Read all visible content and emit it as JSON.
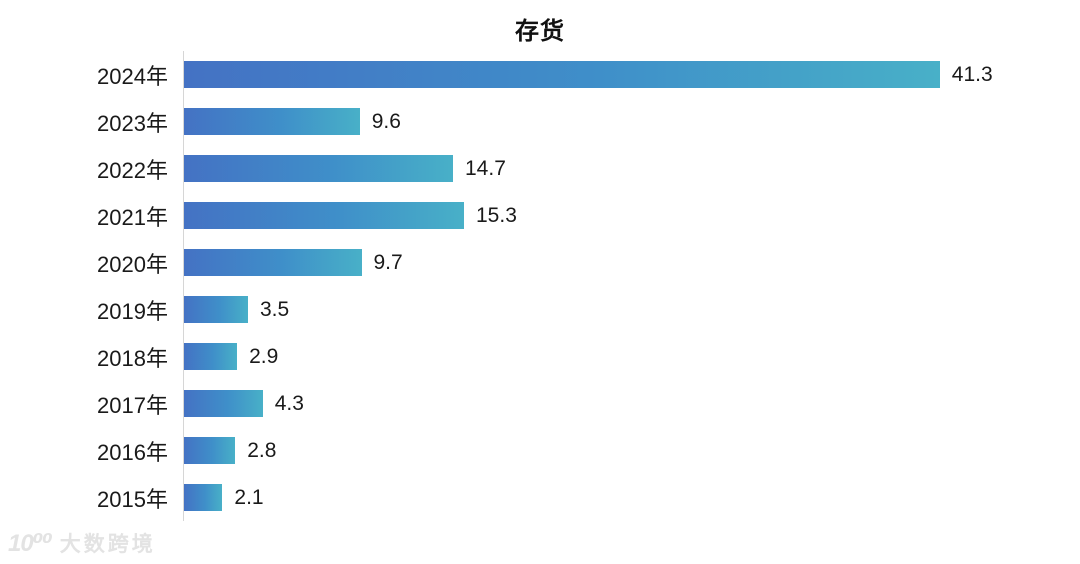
{
  "chart_data": {
    "type": "bar",
    "orientation": "horizontal",
    "title": "存货",
    "categories": [
      "2024年",
      "2023年",
      "2022年",
      "2021年",
      "2020年",
      "2019年",
      "2018年",
      "2017年",
      "2016年",
      "2015年"
    ],
    "values": [
      41.3,
      9.6,
      14.7,
      15.3,
      9.7,
      3.5,
      2.9,
      4.3,
      2.8,
      2.1
    ],
    "xlabel": "",
    "ylabel": "",
    "xlim": [
      0,
      45
    ],
    "grid": false,
    "legend": "none",
    "data_labels": [
      "41.3",
      "9.6",
      "14.7",
      "15.3",
      "9.7",
      "3.5",
      "2.9",
      "4.3",
      "2.8",
      "2.1"
    ],
    "bar_gradient_start_color": "#4472c4",
    "bar_gradient_end_color": "#48b0c8",
    "axis_line_color": "#d6d6d6",
    "label_color": "#1a1a1a"
  },
  "watermark": {
    "logo": "10⁰⁰",
    "text": "大数跨境",
    "color": "#e3e3e3"
  }
}
